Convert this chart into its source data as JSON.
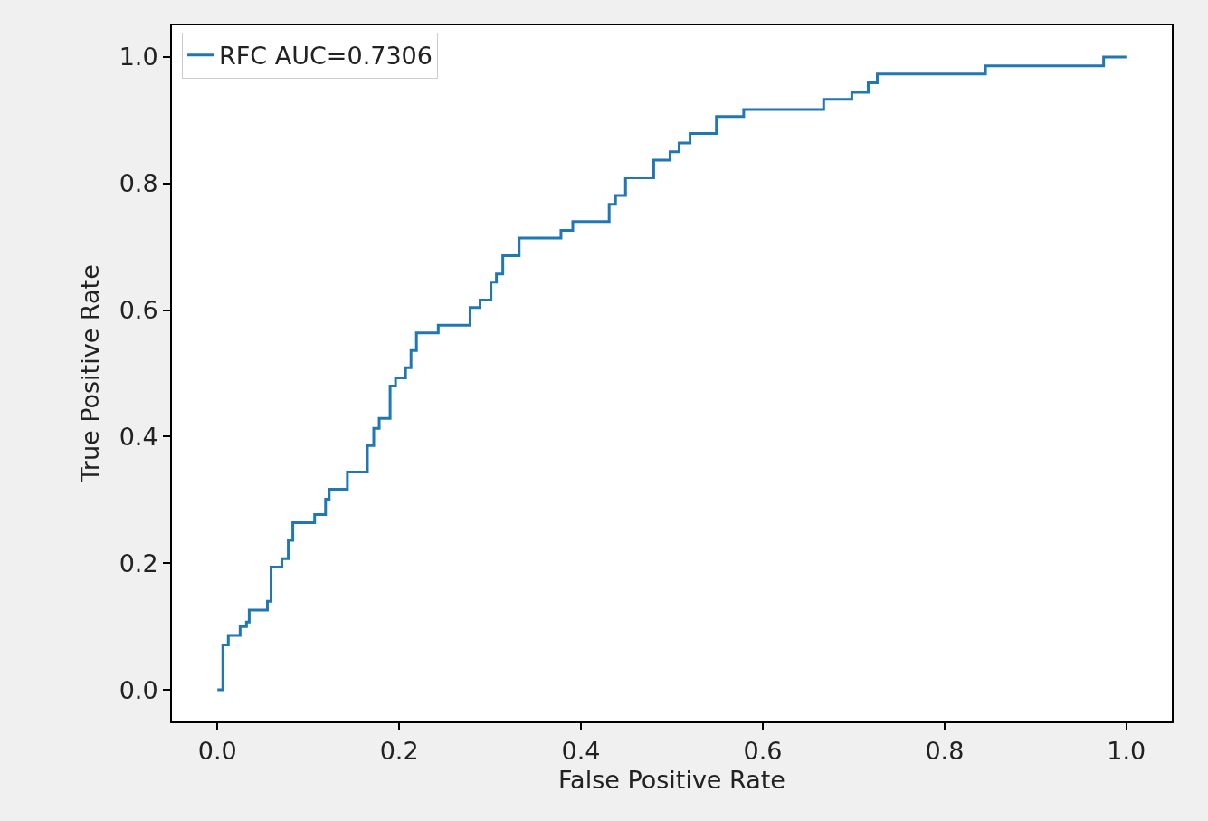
{
  "chart_data": {
    "type": "line",
    "xlabel": "False Positive Rate",
    "ylabel": "True Positive Rate",
    "xlim": [
      -0.05,
      1.05
    ],
    "ylim": [
      -0.05,
      1.05
    ],
    "xticks": [
      {
        "value": 0,
        "label": "0.0"
      },
      {
        "value": 0.2,
        "label": "0.2"
      },
      {
        "value": 0.4,
        "label": "0.4"
      },
      {
        "value": 0.6,
        "label": "0.6"
      },
      {
        "value": 0.8,
        "label": "0.8"
      },
      {
        "value": 1,
        "label": "1.0"
      }
    ],
    "yticks": [
      {
        "value": 0,
        "label": "0.0"
      },
      {
        "value": 0.2,
        "label": "0.2"
      },
      {
        "value": 0.4,
        "label": "0.4"
      },
      {
        "value": 0.6,
        "label": "0.6"
      },
      {
        "value": 0.8,
        "label": "0.8"
      },
      {
        "value": 1,
        "label": "1.0"
      }
    ],
    "legend": "top left",
    "marker": "none",
    "line_style": "solid",
    "series": [
      {
        "name": "RFC AUC=0.7306",
        "color": "#1f77b4",
        "x": [
          0,
          0.006,
          0.006,
          0.012,
          0.012,
          0.025,
          0.025,
          0.032,
          0.032,
          0.035,
          0.035,
          0.055,
          0.055,
          0.059,
          0.059,
          0.071,
          0.071,
          0.078,
          0.078,
          0.083,
          0.083,
          0.107,
          0.107,
          0.119,
          0.119,
          0.123,
          0.123,
          0.143,
          0.143,
          0.165,
          0.165,
          0.172,
          0.172,
          0.178,
          0.178,
          0.19,
          0.19,
          0.196,
          0.196,
          0.207,
          0.207,
          0.213,
          0.213,
          0.219,
          0.219,
          0.243,
          0.243,
          0.278,
          0.278,
          0.289,
          0.289,
          0.301,
          0.301,
          0.307,
          0.307,
          0.314,
          0.314,
          0.332,
          0.332,
          0.378,
          0.378,
          0.391,
          0.391,
          0.431,
          0.431,
          0.438,
          0.438,
          0.449,
          0.449,
          0.48,
          0.48,
          0.498,
          0.498,
          0.508,
          0.508,
          0.52,
          0.52,
          0.549,
          0.549,
          0.579,
          0.579,
          0.667,
          0.667,
          0.698,
          0.698,
          0.716,
          0.716,
          0.726,
          0.726,
          0.845,
          0.845,
          0.975,
          0.975,
          1.0
        ],
        "values": [
          0,
          0,
          0.071,
          0.071,
          0.086,
          0.086,
          0.1,
          0.1,
          0.107,
          0.107,
          0.126,
          0.126,
          0.14,
          0.14,
          0.194,
          0.194,
          0.207,
          0.207,
          0.236,
          0.236,
          0.264,
          0.264,
          0.277,
          0.277,
          0.301,
          0.301,
          0.317,
          0.317,
          0.344,
          0.344,
          0.386,
          0.386,
          0.413,
          0.413,
          0.429,
          0.429,
          0.48,
          0.48,
          0.493,
          0.493,
          0.509,
          0.509,
          0.536,
          0.536,
          0.564,
          0.564,
          0.576,
          0.576,
          0.604,
          0.604,
          0.616,
          0.616,
          0.644,
          0.644,
          0.657,
          0.657,
          0.686,
          0.686,
          0.714,
          0.714,
          0.726,
          0.726,
          0.74,
          0.74,
          0.767,
          0.767,
          0.781,
          0.781,
          0.809,
          0.809,
          0.837,
          0.837,
          0.85,
          0.85,
          0.864,
          0.864,
          0.879,
          0.879,
          0.906,
          0.906,
          0.917,
          0.917,
          0.933,
          0.933,
          0.944,
          0.944,
          0.959,
          0.959,
          0.973,
          0.973,
          0.986,
          0.986,
          1.0,
          1.0
        ]
      }
    ]
  }
}
